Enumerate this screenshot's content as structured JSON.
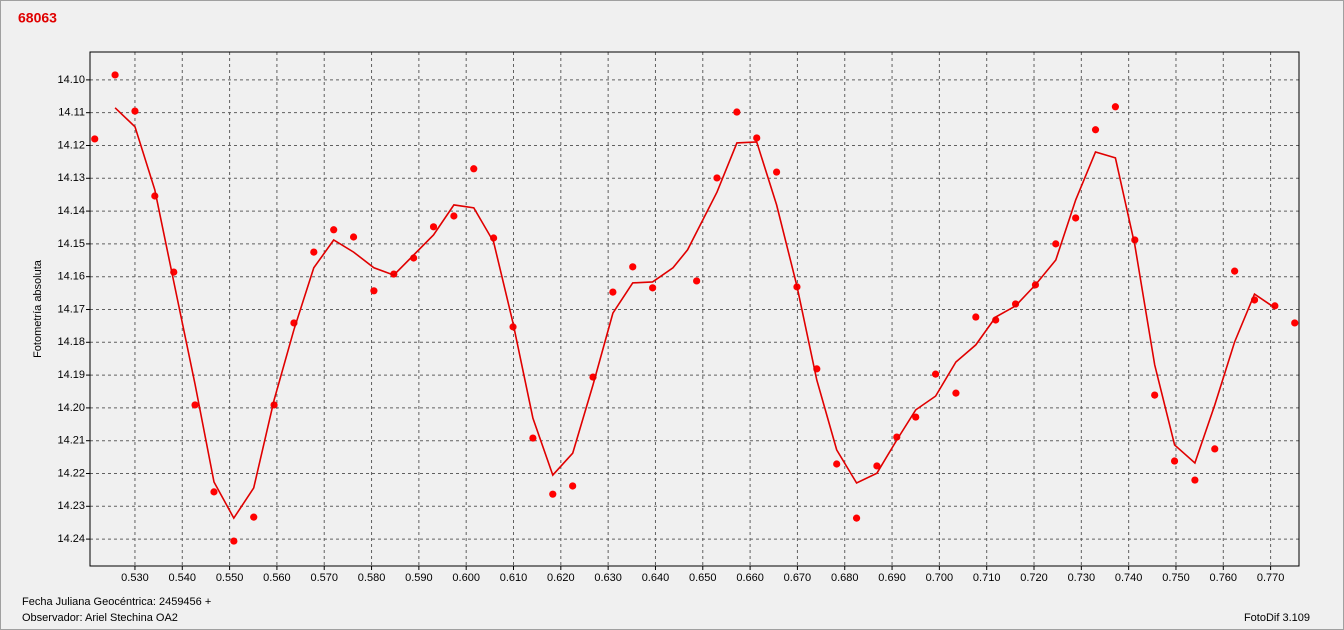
{
  "chart_data": {
    "type": "scatter",
    "title": "68063",
    "y_label": "Fotometría absoluta",
    "footer_left_1": "Fecha Juliana Geocéntrica: 2459456 +",
    "footer_left_2": "Observador: Ariel Stechina OA2",
    "footer_right": "FotoDif 3.109",
    "xlim": [
      0.5205,
      0.776
    ],
    "ylim": [
      14.2482,
      14.0915
    ],
    "grid": true,
    "xticks": [
      {
        "value": 0.53,
        "label": "0.530"
      },
      {
        "value": 0.54,
        "label": "0.540"
      },
      {
        "value": 0.55,
        "label": "0.550"
      },
      {
        "value": 0.56,
        "label": "0.560"
      },
      {
        "value": 0.57,
        "label": "0.570"
      },
      {
        "value": 0.58,
        "label": "0.580"
      },
      {
        "value": 0.59,
        "label": "0.590"
      },
      {
        "value": 0.6,
        "label": "0.600"
      },
      {
        "value": 0.61,
        "label": "0.610"
      },
      {
        "value": 0.62,
        "label": "0.620"
      },
      {
        "value": 0.63,
        "label": "0.630"
      },
      {
        "value": 0.64,
        "label": "0.640"
      },
      {
        "value": 0.65,
        "label": "0.650"
      },
      {
        "value": 0.66,
        "label": "0.660"
      },
      {
        "value": 0.67,
        "label": "0.670"
      },
      {
        "value": 0.68,
        "label": "0.680"
      },
      {
        "value": 0.69,
        "label": "0.690"
      },
      {
        "value": 0.7,
        "label": "0.700"
      },
      {
        "value": 0.71,
        "label": "0.710"
      },
      {
        "value": 0.72,
        "label": "0.720"
      },
      {
        "value": 0.73,
        "label": "0.730"
      },
      {
        "value": 0.74,
        "label": "0.740"
      },
      {
        "value": 0.75,
        "label": "0.750"
      },
      {
        "value": 0.76,
        "label": "0.760"
      },
      {
        "value": 0.77,
        "label": "0.770"
      }
    ],
    "yticks": [
      {
        "value": 14.1,
        "label": "14.10"
      },
      14.11,
      14.12,
      14.13,
      14.14,
      14.15,
      14.16,
      14.17,
      14.18,
      14.19,
      {
        "value": 14.2,
        "label": "14.20"
      },
      14.21,
      14.22,
      14.23,
      14.24
    ],
    "series": [
      {
        "type": "scatter",
        "color": "#ff0000",
        "x": [
          0.5215,
          0.5258,
          0.53,
          0.5342,
          0.5382,
          0.5427,
          0.5467,
          0.5509,
          0.5551,
          0.5594,
          0.5636,
          0.5678,
          0.572,
          0.5762,
          0.5805,
          0.5847,
          0.5889,
          0.5931,
          0.5974,
          0.6016,
          0.6058,
          0.6099,
          0.6141,
          0.6183,
          0.6225,
          0.6268,
          0.631,
          0.6352,
          0.6394,
          0.6487,
          0.653,
          0.6572,
          0.6614,
          0.6656,
          0.6699,
          0.6741,
          0.6783,
          0.6825,
          0.6868,
          0.691,
          0.695,
          0.6992,
          0.7035,
          0.7077,
          0.7119,
          0.7161,
          0.7203,
          0.7246,
          0.7288,
          0.733,
          0.7372,
          0.7413,
          0.7455,
          0.7497,
          0.754,
          0.7582,
          0.7624,
          0.7666,
          0.7709,
          0.7751
        ],
        "values": [
          14.118,
          14.0985,
          14.1095,
          14.1354,
          14.1586,
          14.1991,
          14.2256,
          14.2406,
          14.2333,
          14.1991,
          14.1741,
          14.1525,
          14.1457,
          14.1479,
          14.1643,
          14.1592,
          14.1543,
          14.1448,
          14.1415,
          14.1271,
          14.1482,
          14.1753,
          14.2092,
          14.2263,
          14.2238,
          14.1906,
          14.1647,
          14.157,
          14.1634,
          14.1613,
          14.1299,
          14.1098,
          14.1177,
          14.1281,
          14.1631,
          14.1881,
          14.2171,
          14.2336,
          14.2177,
          14.2089,
          14.2028,
          14.1897,
          14.1955,
          14.1723,
          14.1732,
          14.1683,
          14.1625,
          14.15,
          14.1421,
          14.1152,
          14.1082,
          14.1488,
          14.1961,
          14.2162,
          14.222,
          14.2125,
          14.1583,
          14.1671,
          14.1689,
          14.1741
        ]
      },
      {
        "type": "line",
        "color": "#e00000",
        "x": [
          0.5258,
          0.53,
          0.5342,
          0.5382,
          0.5427,
          0.5467,
          0.5509,
          0.5551,
          0.5594,
          0.5636,
          0.5678,
          0.572,
          0.5762,
          0.5805,
          0.5847,
          0.5889,
          0.5931,
          0.5974,
          0.6016,
          0.6058,
          0.6099,
          0.6141,
          0.6183,
          0.6225,
          0.6268,
          0.631,
          0.6352,
          0.6394,
          0.6437,
          0.6468,
          0.653,
          0.6572,
          0.6614,
          0.6656,
          0.6699,
          0.6741,
          0.6783,
          0.6825,
          0.6868,
          0.691,
          0.695,
          0.6992,
          0.7035,
          0.7077,
          0.7119,
          0.7161,
          0.7203,
          0.7246,
          0.7288,
          0.733,
          0.7372,
          0.7413,
          0.7455,
          0.7497,
          0.754,
          0.7582,
          0.7624,
          0.7666,
          0.7709
        ],
        "values": [
          14.1085,
          14.1143,
          14.1335,
          14.1616,
          14.1927,
          14.2226,
          14.2336,
          14.2244,
          14.1976,
          14.1762,
          14.1573,
          14.1488,
          14.1525,
          14.1573,
          14.1595,
          14.1534,
          14.1473,
          14.1381,
          14.139,
          14.1494,
          14.1741,
          14.2031,
          14.2205,
          14.2138,
          14.193,
          14.1711,
          14.1619,
          14.1616,
          14.1573,
          14.1518,
          14.1342,
          14.1192,
          14.1189,
          14.1381,
          14.1628,
          14.1915,
          14.2128,
          14.2229,
          14.2199,
          14.2098,
          14.2006,
          14.1964,
          14.186,
          14.1808,
          14.1723,
          14.1689,
          14.1625,
          14.1549,
          14.1366,
          14.122,
          14.1238,
          14.1503,
          14.1869,
          14.2113,
          14.2168,
          14.1991,
          14.1799,
          14.1653,
          14.1695
        ]
      }
    ]
  }
}
